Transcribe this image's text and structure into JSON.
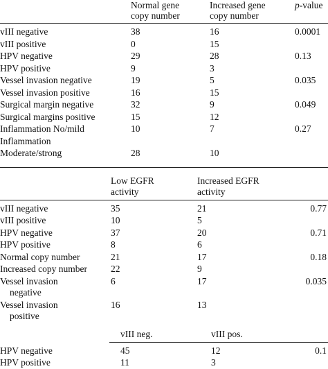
{
  "table1": {
    "headers": [
      "",
      "Normal gene\ncopy number",
      "Increased gene\ncopy number",
      "p-value"
    ],
    "rows": [
      {
        "label": "vIII negative",
        "c1": "38",
        "c2": "16",
        "p": "0.0001"
      },
      {
        "label": "vIII positive",
        "c1": "0",
        "c2": "15",
        "p": ""
      },
      {
        "label": "HPV negative",
        "c1": "29",
        "c2": "28",
        "p": "0.13"
      },
      {
        "label": "HPV positive",
        "c1": "9",
        "c2": "3",
        "p": ""
      },
      {
        "label": "Vessel invasion negative",
        "c1": "19",
        "c2": "5",
        "p": "0.035"
      },
      {
        "label": "Vessel invasion positive",
        "c1": "16",
        "c2": "15",
        "p": ""
      },
      {
        "label": "Surgical margin negative",
        "c1": "32",
        "c2": "9",
        "p": "0.049"
      },
      {
        "label": "Surgical margins positive",
        "c1": "15",
        "c2": "12",
        "p": ""
      },
      {
        "label": "Inflammation No/mild",
        "c1": "10",
        "c2": "7",
        "p": "0.27"
      },
      {
        "label": "Inflammation",
        "c1": "",
        "c2": "",
        "p": ""
      },
      {
        "label": "Moderate/strong",
        "c1": "28",
        "c2": "10",
        "p": ""
      }
    ]
  },
  "table2": {
    "headers": [
      "",
      "Low EGFR\nactivity",
      "Increased EGFR\nactivity",
      ""
    ],
    "rows": [
      {
        "label": "vIII negative",
        "c1": "35",
        "c2": "21",
        "p": "0.77"
      },
      {
        "label": "vIII positive",
        "c1": "10",
        "c2": "5",
        "p": ""
      },
      {
        "label": "HPV negative",
        "c1": "37",
        "c2": "20",
        "p": "0.71"
      },
      {
        "label": "HPV positive",
        "c1": "8",
        "c2": "6",
        "p": ""
      },
      {
        "label": "Normal copy number",
        "c1": "21",
        "c2": "17",
        "p": "0.18"
      },
      {
        "label": "Increased copy number",
        "c1": "22",
        "c2": "9",
        "p": ""
      },
      {
        "label": "Vessel invasion",
        "label2": "negative",
        "c1": "6",
        "c2": "17",
        "p": "0.035"
      },
      {
        "label": "Vessel invasion",
        "label2": "positive",
        "c1": "16",
        "c2": "13",
        "p": ""
      }
    ]
  },
  "table3": {
    "headers": [
      "",
      "vIII neg.",
      "vIII pos.",
      ""
    ],
    "rows": [
      {
        "label": "HPV negative",
        "c1": "45",
        "c2": "12",
        "p": "0.1"
      },
      {
        "label": "HPV positive",
        "c1": "11",
        "c2": "3",
        "p": ""
      }
    ]
  }
}
